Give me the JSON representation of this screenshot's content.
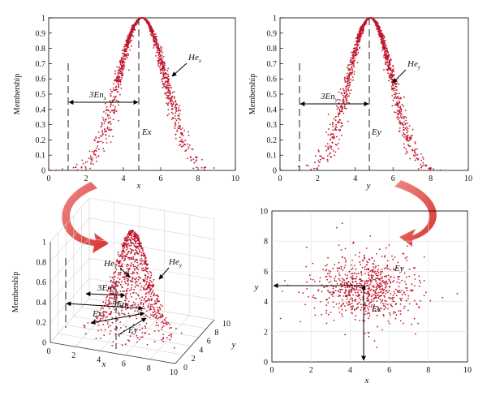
{
  "chart_data": [
    {
      "type": "scatter",
      "panel": "membership-x",
      "xlabel": "x",
      "ylabel": "Membership",
      "xlim": [
        0,
        10
      ],
      "ylim": [
        0,
        1
      ],
      "xticks": [
        "0",
        "2",
        "4",
        "6",
        "8",
        "10"
      ],
      "yticks": [
        "0",
        "0.1",
        "0.2",
        "0.3",
        "0.4",
        "0.5",
        "0.6",
        "0.7",
        "0.8",
        "0.9",
        "1"
      ],
      "ex": 5,
      "en_span_from": 1.3,
      "annotations": {
        "ex": "Ex",
        "en": "3En",
        "en_sub": "x",
        "he": "He",
        "he_sub": "x"
      },
      "cloud": {
        "mean": 5,
        "en": 1.25,
        "he": 0.12,
        "drops": 1300
      },
      "point_color": "#c0142a"
    },
    {
      "type": "scatter",
      "panel": "membership-y",
      "xlabel": "y",
      "ylabel": "Membership",
      "xlim": [
        0,
        10
      ],
      "ylim": [
        0,
        1
      ],
      "xticks": [
        "0",
        "2",
        "4",
        "6",
        "8",
        "10"
      ],
      "yticks": [
        "0",
        "0.1",
        "0.2",
        "0.3",
        "0.4",
        "0.5",
        "0.6",
        "0.7",
        "0.8",
        "0.9",
        "1"
      ],
      "ex": 4.8,
      "en_span_from": 1.2,
      "annotations": {
        "ex": "Ey",
        "en": "3En",
        "en_sub": "y",
        "he": "He",
        "he_sub": "y"
      },
      "cloud": {
        "mean": 4.8,
        "en": 1.15,
        "he": 0.12,
        "drops": 1300
      },
      "point_color": "#c0142a"
    },
    {
      "type": "scatter3d",
      "panel": "membership-3d",
      "xlabel": "x",
      "ylabel": "y",
      "zlabel": "Membership",
      "xticks": [
        "0",
        "2",
        "4",
        "6",
        "8",
        "10"
      ],
      "yticks": [
        "0",
        "2",
        "4",
        "6",
        "8",
        "10"
      ],
      "zticks": [
        "0",
        "0.2",
        "0.4",
        "0.6",
        "0.8",
        "1"
      ],
      "annotations": {
        "ex": "Ex",
        "ey": "Ey",
        "en": "3En",
        "en_x_sub": "x",
        "en_y_sub": "y",
        "he": "He",
        "he_x_sub": "x",
        "he_y_sub": "y"
      },
      "cloud": {
        "mean_x": 5,
        "mean_y": 5,
        "en_x": 1.25,
        "en_y": 1.15,
        "drops": 900
      },
      "point_color": "#c0142a"
    },
    {
      "type": "scatter",
      "panel": "joint-xy",
      "xlabel": "x",
      "ylabel": "y",
      "xlim": [
        0,
        10
      ],
      "ylim": [
        0,
        10
      ],
      "xticks": [
        "0",
        "2",
        "4",
        "6",
        "8",
        "10"
      ],
      "yticks": [
        "0",
        "2",
        "4",
        "6",
        "8",
        "10"
      ],
      "annotations": {
        "ex": "Ex",
        "ey": "Ey"
      },
      "center": {
        "x": 4.7,
        "y": 4.9
      },
      "cloud": {
        "mean_x": 4.8,
        "mean_y": 4.9,
        "sd_x": 1.25,
        "sd_y": 1.1,
        "drops": 750
      },
      "point_color": "#c0142a"
    }
  ],
  "arrows": {
    "color": "#e2514f"
  }
}
